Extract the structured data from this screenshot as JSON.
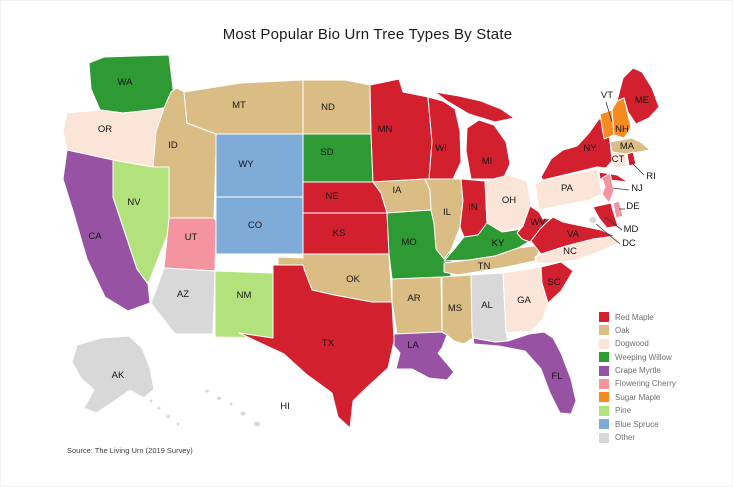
{
  "title": "Most Popular Bio Urn Tree Types By State",
  "source": "Source: The Living Urn (2019 Survey)",
  "chart_data": {
    "type": "choropleth",
    "region": "United States",
    "unit": "state",
    "title": "Most Popular Bio Urn Tree Types By State",
    "source": "Source: The Living Urn (2019 Survey)",
    "legend_position": "right",
    "legend": [
      {
        "label": "Red Maple",
        "color": "#d2202f"
      },
      {
        "label": "Oak",
        "color": "#d9bd85"
      },
      {
        "label": "Dogwood",
        "color": "#fbe5d8"
      },
      {
        "label": "Weeping Willow",
        "color": "#2e9a34"
      },
      {
        "label": "Crape Myrtle",
        "color": "#9752a3"
      },
      {
        "label": "Flowering Cherry",
        "color": "#f4949e"
      },
      {
        "label": "Sugar Maple",
        "color": "#f68b1f"
      },
      {
        "label": "Pine",
        "color": "#b3e27d"
      },
      {
        "label": "Blue Spruce",
        "color": "#7fabd8"
      },
      {
        "label": "Other",
        "color": "#d8d8d8"
      }
    ],
    "states": [
      {
        "code": "WA",
        "value": "Weeping Willow"
      },
      {
        "code": "OR",
        "value": "Dogwood"
      },
      {
        "code": "CA",
        "value": "Crape Myrtle"
      },
      {
        "code": "ID",
        "value": "Oak"
      },
      {
        "code": "NV",
        "value": "Pine"
      },
      {
        "code": "UT",
        "value": "Flowering Cherry"
      },
      {
        "code": "AZ",
        "value": "Other"
      },
      {
        "code": "MT",
        "value": "Oak"
      },
      {
        "code": "WY",
        "value": "Blue Spruce"
      },
      {
        "code": "CO",
        "value": "Blue Spruce"
      },
      {
        "code": "NM",
        "value": "Pine"
      },
      {
        "code": "ND",
        "value": "Oak"
      },
      {
        "code": "SD",
        "value": "Weeping Willow"
      },
      {
        "code": "NE",
        "value": "Red Maple"
      },
      {
        "code": "KS",
        "value": "Red Maple"
      },
      {
        "code": "OK",
        "value": "Oak"
      },
      {
        "code": "TX",
        "value": "Red Maple"
      },
      {
        "code": "MN",
        "value": "Red Maple"
      },
      {
        "code": "IA",
        "value": "Oak"
      },
      {
        "code": "MO",
        "value": "Weeping Willow"
      },
      {
        "code": "AR",
        "value": "Oak"
      },
      {
        "code": "LA",
        "value": "Crape Myrtle"
      },
      {
        "code": "WI",
        "value": "Red Maple"
      },
      {
        "code": "IL",
        "value": "Oak"
      },
      {
        "code": "MI",
        "value": "Red Maple"
      },
      {
        "code": "IN",
        "value": "Red Maple"
      },
      {
        "code": "OH",
        "value": "Dogwood"
      },
      {
        "code": "KY",
        "value": "Weeping Willow"
      },
      {
        "code": "TN",
        "value": "Oak"
      },
      {
        "code": "MS",
        "value": "Oak"
      },
      {
        "code": "AL",
        "value": "Other"
      },
      {
        "code": "GA",
        "value": "Dogwood"
      },
      {
        "code": "FL",
        "value": "Crape Myrtle"
      },
      {
        "code": "SC",
        "value": "Red Maple"
      },
      {
        "code": "NC",
        "value": "Dogwood"
      },
      {
        "code": "VA",
        "value": "Red Maple"
      },
      {
        "code": "WV",
        "value": "Red Maple"
      },
      {
        "code": "PA",
        "value": "Dogwood"
      },
      {
        "code": "NY",
        "value": "Red Maple"
      },
      {
        "code": "ME",
        "value": "Red Maple"
      },
      {
        "code": "VT",
        "value": "Sugar Maple"
      },
      {
        "code": "NH",
        "value": "Sugar Maple"
      },
      {
        "code": "MA",
        "value": "Oak"
      },
      {
        "code": "CT",
        "value": "Dogwood"
      },
      {
        "code": "RI",
        "value": "Red Maple"
      },
      {
        "code": "NJ",
        "value": "Flowering Cherry"
      },
      {
        "code": "DE",
        "value": "Flowering Cherry"
      },
      {
        "code": "MD",
        "value": "Red Maple"
      },
      {
        "code": "DC",
        "value": "Other"
      },
      {
        "code": "AK",
        "value": "Other"
      },
      {
        "code": "HI",
        "value": "Other"
      }
    ]
  }
}
